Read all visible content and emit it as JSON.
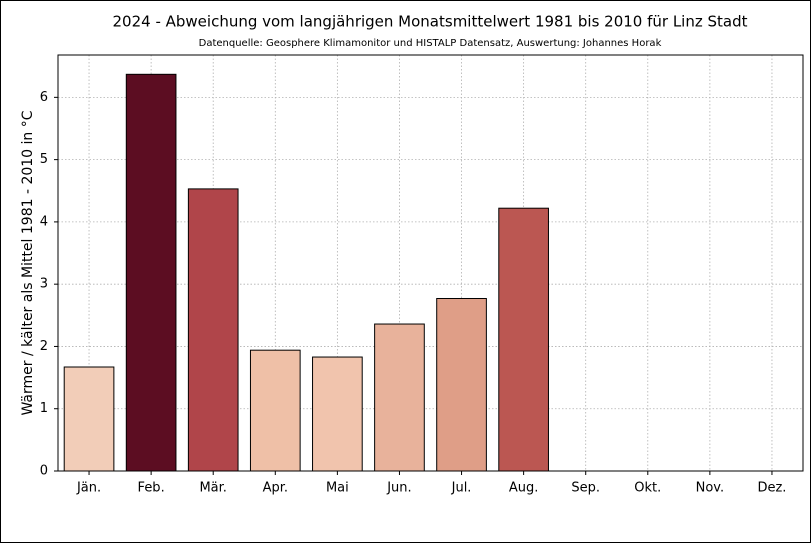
{
  "chart_data": {
    "type": "bar",
    "title": "2024 - Abweichung vom langjährigen Monatsmittelwert 1981 bis 2010 für Linz Stadt",
    "subtitle": "Datenquelle: Geosphere Klimamonitor und HISTALP Datensatz, Auswertung: Johannes Horak",
    "ylabel": "Wärmer / kälter als Mittel 1981 - 2010 in °C",
    "categories": [
      "Jän.",
      "Feb.",
      "Mär.",
      "Apr.",
      "Mai",
      "Jun.",
      "Jul.",
      "Aug.",
      "Sep.",
      "Okt.",
      "Nov.",
      "Dez."
    ],
    "values": [
      1.67,
      6.37,
      4.53,
      1.94,
      1.83,
      2.36,
      2.77,
      4.22,
      null,
      null,
      null,
      null
    ],
    "colors": [
      "#f2cdb8",
      "#5c0d22",
      "#b0454a",
      "#efc0a7",
      "#f1c4ad",
      "#e8b29b",
      "#df9e87",
      "#bb5752",
      null,
      null,
      null,
      null
    ],
    "ylim": [
      0,
      6.68
    ],
    "yticks": [
      0,
      1,
      2,
      3,
      4,
      5,
      6
    ],
    "grid": true
  }
}
